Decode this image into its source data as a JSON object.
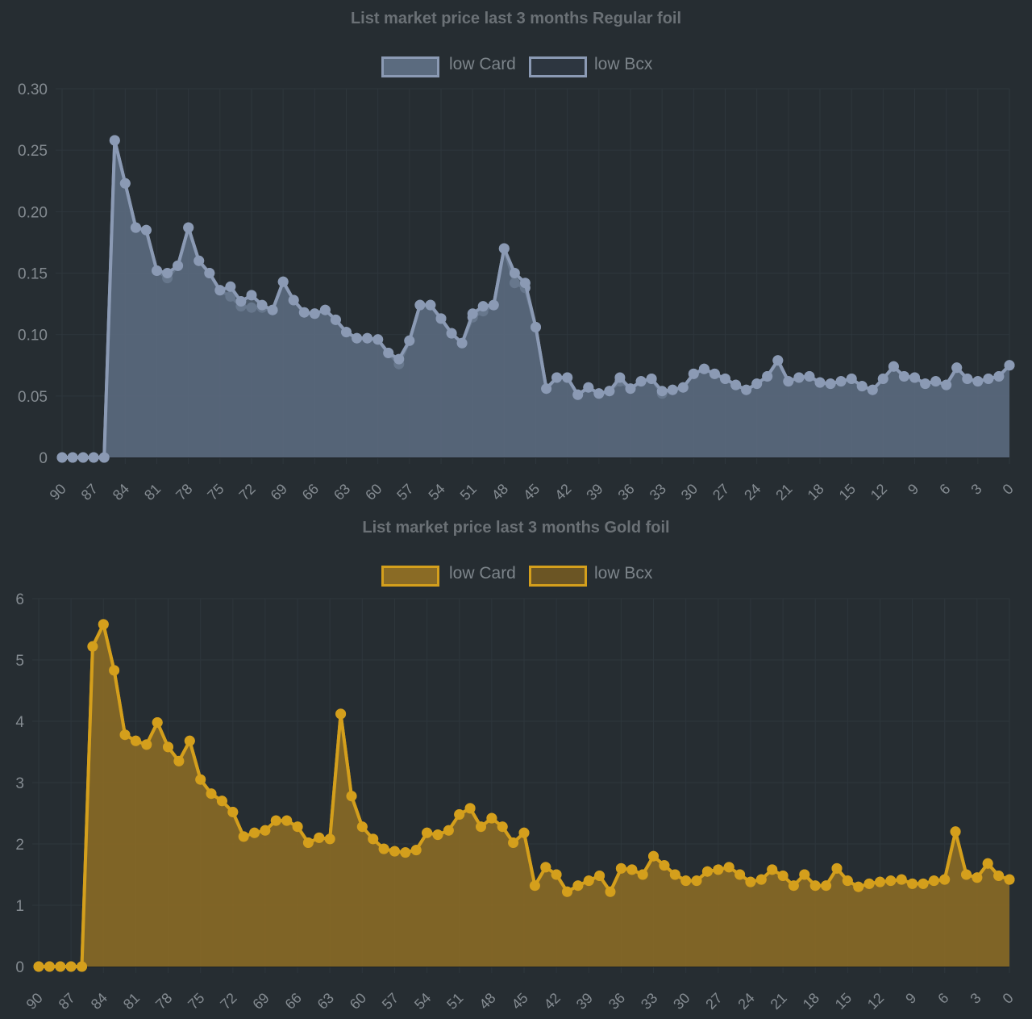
{
  "chart_data": [
    {
      "type": "area",
      "title": "List market price last 3 months Regular foil",
      "xlabel": "",
      "ylabel": "",
      "x": [
        90,
        89,
        88,
        87,
        86,
        85,
        84,
        83,
        82,
        81,
        80,
        79,
        78,
        77,
        76,
        75,
        74,
        73,
        72,
        71,
        70,
        69,
        68,
        67,
        66,
        65,
        64,
        63,
        62,
        61,
        60,
        59,
        58,
        57,
        56,
        55,
        54,
        53,
        52,
        51,
        50,
        49,
        48,
        47,
        46,
        45,
        44,
        43,
        42,
        41,
        40,
        39,
        38,
        37,
        36,
        35,
        34,
        33,
        32,
        31,
        30,
        29,
        28,
        27,
        26,
        25,
        24,
        23,
        22,
        21,
        20,
        19,
        18,
        17,
        16,
        15,
        14,
        13,
        12,
        11,
        10,
        9,
        8,
        7,
        6,
        5,
        4,
        3,
        2,
        1,
        0
      ],
      "x_ticks": [
        90,
        87,
        84,
        81,
        78,
        75,
        72,
        69,
        66,
        63,
        60,
        57,
        54,
        51,
        48,
        45,
        42,
        39,
        36,
        33,
        30,
        27,
        24,
        21,
        18,
        15,
        12,
        9,
        6,
        3,
        0
      ],
      "y_ticks": [
        "0",
        "0.05",
        "0.10",
        "0.15",
        "0.20",
        "0.25",
        "0.30"
      ],
      "ylim": [
        0,
        0.3
      ],
      "grid": true,
      "legend_position": "top",
      "colors": {
        "line": "#8b9ab4",
        "fill": "#5b6b7f",
        "point": "#8b9ab4"
      },
      "series": [
        {
          "name": "low Card",
          "values": [
            0,
            0,
            0,
            0,
            0,
            0.258,
            0.223,
            0.187,
            0.185,
            0.152,
            0.15,
            0.156,
            0.187,
            0.16,
            0.15,
            0.136,
            0.139,
            0.127,
            0.132,
            0.124,
            0.12,
            0.143,
            0.128,
            0.118,
            0.117,
            0.12,
            0.112,
            0.102,
            0.097,
            0.097,
            0.096,
            0.085,
            0.08,
            0.095,
            0.124,
            0.124,
            0.113,
            0.101,
            0.093,
            0.117,
            0.123,
            0.124,
            0.17,
            0.15,
            0.142,
            0.106,
            0.056,
            0.065,
            0.065,
            0.051,
            0.057,
            0.052,
            0.054,
            0.065,
            0.056,
            0.062,
            0.064,
            0.054,
            0.055,
            0.057,
            0.068,
            0.072,
            0.068,
            0.064,
            0.059,
            0.055,
            0.06,
            0.066,
            0.079,
            0.062,
            0.065,
            0.066,
            0.061,
            0.06,
            0.062,
            0.064,
            0.058,
            0.055,
            0.064,
            0.074,
            0.066,
            0.065,
            0.06,
            0.062,
            0.059,
            0.073,
            0.064,
            0.062,
            0.064,
            0.066,
            0.075
          ]
        },
        {
          "name": "low Bcx",
          "values": [
            0,
            0,
            0,
            0,
            0,
            0.258,
            0.223,
            0.187,
            0.185,
            0.152,
            0.146,
            0.156,
            0.187,
            0.16,
            0.15,
            0.136,
            0.131,
            0.123,
            0.122,
            0.122,
            0.12,
            0.143,
            0.128,
            0.118,
            0.117,
            0.12,
            0.112,
            0.102,
            0.097,
            0.097,
            0.096,
            0.085,
            0.076,
            0.095,
            0.124,
            0.124,
            0.113,
            0.101,
            0.093,
            0.114,
            0.119,
            0.124,
            0.17,
            0.142,
            0.138,
            0.106,
            0.056,
            0.065,
            0.065,
            0.051,
            0.057,
            0.052,
            0.054,
            0.062,
            0.056,
            0.062,
            0.064,
            0.052,
            0.055,
            0.057,
            0.068,
            0.072,
            0.068,
            0.064,
            0.059,
            0.055,
            0.06,
            0.066,
            0.079,
            0.062,
            0.065,
            0.066,
            0.061,
            0.06,
            0.062,
            0.064,
            0.058,
            0.055,
            0.064,
            0.074,
            0.066,
            0.065,
            0.06,
            0.062,
            0.059,
            0.073,
            0.064,
            0.062,
            0.064,
            0.066,
            0.075
          ]
        }
      ]
    },
    {
      "type": "area",
      "title": "List market price last 3 months Gold foil",
      "xlabel": "",
      "ylabel": "",
      "x": [
        90,
        89,
        88,
        87,
        86,
        85,
        84,
        83,
        82,
        81,
        80,
        79,
        78,
        77,
        76,
        75,
        74,
        73,
        72,
        71,
        70,
        69,
        68,
        67,
        66,
        65,
        64,
        63,
        62,
        61,
        60,
        59,
        58,
        57,
        56,
        55,
        54,
        53,
        52,
        51,
        50,
        49,
        48,
        47,
        46,
        45,
        44,
        43,
        42,
        41,
        40,
        39,
        38,
        37,
        36,
        35,
        34,
        33,
        32,
        31,
        30,
        29,
        28,
        27,
        26,
        25,
        24,
        23,
        22,
        21,
        20,
        19,
        18,
        17,
        16,
        15,
        14,
        13,
        12,
        11,
        10,
        9,
        8,
        7,
        6,
        5,
        4,
        3,
        2,
        1,
        0
      ],
      "x_ticks": [
        90,
        87,
        84,
        81,
        78,
        75,
        72,
        69,
        66,
        63,
        60,
        57,
        54,
        51,
        48,
        45,
        42,
        39,
        36,
        33,
        30,
        27,
        24,
        21,
        18,
        15,
        12,
        9,
        6,
        3,
        0
      ],
      "y_ticks": [
        "0",
        "1",
        "2",
        "3",
        "4",
        "5",
        "6"
      ],
      "ylim": [
        0,
        6
      ],
      "grid": true,
      "legend_position": "top",
      "colors": {
        "line": "#d49f1c",
        "fill": "#8a6b25",
        "point": "#d49f1c"
      },
      "series": [
        {
          "name": "low Card",
          "values": [
            0,
            0,
            0,
            0,
            0,
            5.22,
            5.58,
            4.83,
            3.78,
            3.68,
            3.62,
            3.98,
            3.58,
            3.35,
            3.68,
            3.05,
            2.82,
            2.7,
            2.52,
            2.12,
            2.18,
            2.22,
            2.38,
            2.38,
            2.28,
            2.02,
            2.1,
            2.08,
            4.12,
            2.78,
            2.28,
            2.08,
            1.92,
            1.88,
            1.86,
            1.9,
            2.18,
            2.15,
            2.22,
            2.48,
            2.58,
            2.28,
            2.42,
            2.28,
            2.02,
            2.18,
            1.32,
            1.62,
            1.5,
            1.22,
            1.32,
            1.4,
            1.48,
            1.22,
            1.6,
            1.58,
            1.5,
            1.8,
            1.65,
            1.5,
            1.4,
            1.4,
            1.55,
            1.58,
            1.62,
            1.5,
            1.38,
            1.42,
            1.58,
            1.48,
            1.32,
            1.5,
            1.32,
            1.32,
            1.6,
            1.4,
            1.3,
            1.35,
            1.38,
            1.4,
            1.42,
            1.35,
            1.35,
            1.4,
            1.42,
            2.2,
            1.5,
            1.45,
            1.68,
            1.48,
            1.42
          ]
        },
        {
          "name": "low Bcx",
          "values": [
            0,
            0,
            0,
            0,
            0,
            5.22,
            5.58,
            4.83,
            3.78,
            3.68,
            3.62,
            3.98,
            3.58,
            3.35,
            3.68,
            3.05,
            2.82,
            2.7,
            2.52,
            2.12,
            2.18,
            2.22,
            2.38,
            2.38,
            2.28,
            2.02,
            2.1,
            2.08,
            4.12,
            2.78,
            2.28,
            2.08,
            1.92,
            1.88,
            1.86,
            1.9,
            2.18,
            2.15,
            2.22,
            2.48,
            2.58,
            2.28,
            2.42,
            2.28,
            2.02,
            2.18,
            1.32,
            1.62,
            1.5,
            1.22,
            1.32,
            1.4,
            1.48,
            1.22,
            1.6,
            1.58,
            1.5,
            1.8,
            1.65,
            1.5,
            1.4,
            1.4,
            1.55,
            1.58,
            1.62,
            1.5,
            1.38,
            1.42,
            1.58,
            1.48,
            1.32,
            1.5,
            1.32,
            1.32,
            1.6,
            1.4,
            1.3,
            1.35,
            1.38,
            1.4,
            1.42,
            1.35,
            1.35,
            1.4,
            1.42,
            2.2,
            1.5,
            1.45,
            1.68,
            1.48,
            1.42
          ]
        }
      ]
    }
  ]
}
